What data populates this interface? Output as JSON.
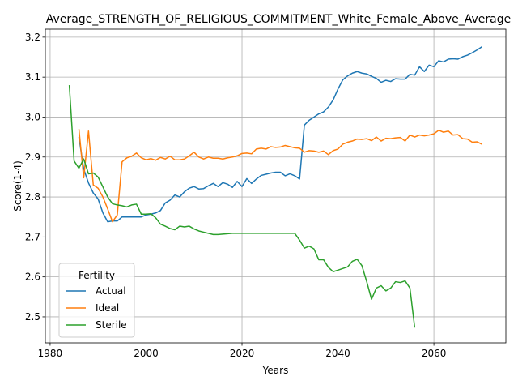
{
  "chart_data": {
    "type": "line",
    "title": "Average_STRENGTH_OF_RELIGIOUS_COMMITMENT_White_Female_Above_Average",
    "xlabel": "Years",
    "ylabel": "Score(1-4)",
    "xlim": [
      1979,
      2075
    ],
    "ylim": [
      2.435,
      3.22
    ],
    "xticks": [
      1980,
      2000,
      2020,
      2040,
      2060
    ],
    "yticks": [
      2.5,
      2.6,
      2.7,
      2.8,
      2.9,
      3.0,
      3.1,
      3.2
    ],
    "grid": true,
    "legend": {
      "title": "Fertility",
      "placement": "lower-left"
    },
    "series": [
      {
        "name": "Actual",
        "color": "#1f77b4",
        "x": [
          1986,
          1987,
          1988,
          1989,
          1990,
          1991,
          1992,
          1993,
          1994,
          1995,
          1996,
          1997,
          1998,
          1999,
          2000,
          2001,
          2002,
          2003,
          2004,
          2005,
          2006,
          2007,
          2008,
          2009,
          2010,
          2011,
          2012,
          2013,
          2014,
          2015,
          2016,
          2017,
          2018,
          2019,
          2020,
          2021,
          2022,
          2023,
          2024,
          2025,
          2026,
          2027,
          2028,
          2029,
          2030,
          2031,
          2032,
          2033,
          2034,
          2035,
          2036,
          2037,
          2038,
          2039,
          2040,
          2041,
          2042,
          2043,
          2044,
          2045,
          2046,
          2047,
          2048,
          2049,
          2050,
          2051,
          2052,
          2053,
          2054,
          2055,
          2056,
          2057,
          2058,
          2059,
          2060,
          2061,
          2062,
          2063,
          2064,
          2065,
          2066,
          2067,
          2068,
          2069,
          2070
        ],
        "y": [
          2.95,
          2.87,
          2.835,
          2.81,
          2.795,
          2.76,
          2.738,
          2.74,
          2.74,
          2.75,
          2.75,
          2.75,
          2.75,
          2.75,
          2.755,
          2.757,
          2.76,
          2.766,
          2.785,
          2.792,
          2.805,
          2.8,
          2.813,
          2.822,
          2.826,
          2.82,
          2.821,
          2.828,
          2.834,
          2.826,
          2.836,
          2.832,
          2.824,
          2.839,
          2.826,
          2.846,
          2.834,
          2.845,
          2.854,
          2.857,
          2.86,
          2.862,
          2.862,
          2.853,
          2.858,
          2.853,
          2.845,
          2.98,
          2.992,
          3.0,
          3.008,
          3.013,
          3.025,
          3.043,
          3.07,
          3.093,
          3.103,
          3.11,
          3.114,
          3.11,
          3.108,
          3.102,
          3.097,
          3.087,
          3.092,
          3.089,
          3.096,
          3.095,
          3.095,
          3.107,
          3.105,
          3.126,
          3.114,
          3.13,
          3.126,
          3.141,
          3.138,
          3.145,
          3.146,
          3.145,
          3.151,
          3.155,
          3.161,
          3.168,
          3.176
        ]
      },
      {
        "name": "Ideal",
        "color": "#ff7f0e",
        "x": [
          1986,
          1987,
          1988,
          1989,
          1990,
          1991,
          1992,
          1993,
          1994,
          1995,
          1996,
          1997,
          1998,
          1999,
          2000,
          2001,
          2002,
          2003,
          2004,
          2005,
          2006,
          2007,
          2008,
          2009,
          2010,
          2011,
          2012,
          2013,
          2014,
          2015,
          2016,
          2017,
          2018,
          2019,
          2020,
          2021,
          2022,
          2023,
          2024,
          2025,
          2026,
          2027,
          2028,
          2029,
          2030,
          2031,
          2032,
          2033,
          2034,
          2035,
          2036,
          2037,
          2038,
          2039,
          2040,
          2041,
          2042,
          2043,
          2044,
          2045,
          2046,
          2047,
          2048,
          2049,
          2050,
          2051,
          2052,
          2053,
          2054,
          2055,
          2056,
          2057,
          2058,
          2059,
          2060,
          2061,
          2062,
          2063,
          2064,
          2065,
          2066,
          2067,
          2068,
          2069,
          2070
        ],
        "y": [
          2.97,
          2.848,
          2.965,
          2.83,
          2.822,
          2.8,
          2.77,
          2.738,
          2.755,
          2.888,
          2.898,
          2.902,
          2.91,
          2.898,
          2.893,
          2.896,
          2.892,
          2.899,
          2.895,
          2.902,
          2.893,
          2.893,
          2.895,
          2.903,
          2.912,
          2.9,
          2.895,
          2.9,
          2.897,
          2.897,
          2.895,
          2.898,
          2.9,
          2.903,
          2.909,
          2.91,
          2.908,
          2.92,
          2.922,
          2.92,
          2.926,
          2.924,
          2.925,
          2.929,
          2.926,
          2.923,
          2.922,
          2.912,
          2.916,
          2.915,
          2.912,
          2.915,
          2.906,
          2.916,
          2.92,
          2.932,
          2.937,
          2.94,
          2.945,
          2.944,
          2.946,
          2.941,
          2.95,
          2.94,
          2.947,
          2.946,
          2.948,
          2.949,
          2.94,
          2.955,
          2.95,
          2.955,
          2.953,
          2.955,
          2.958,
          2.967,
          2.962,
          2.965,
          2.955,
          2.956,
          2.946,
          2.945,
          2.937,
          2.938,
          2.932
        ]
      },
      {
        "name": "Sterile",
        "color": "#2ca02c",
        "x": [
          1984,
          1985,
          1986,
          1987,
          1988,
          1989,
          1990,
          1991,
          1992,
          1993,
          1994,
          1995,
          1996,
          1997,
          1998,
          1999,
          2000,
          2001,
          2002,
          2003,
          2004,
          2005,
          2006,
          2007,
          2008,
          2009,
          2010,
          2011,
          2012,
          2013,
          2014,
          2015,
          2016,
          2017,
          2018,
          2019,
          2020,
          2021,
          2022,
          2023,
          2024,
          2025,
          2026,
          2027,
          2028,
          2029,
          2030,
          2031,
          2032,
          2033,
          2034,
          2035,
          2036,
          2037,
          2038,
          2039,
          2040,
          2041,
          2042,
          2043,
          2044,
          2045,
          2046,
          2047,
          2048,
          2049,
          2050,
          2051,
          2052,
          2053,
          2054,
          2055,
          2056
        ],
        "y": [
          3.08,
          2.89,
          2.872,
          2.895,
          2.858,
          2.86,
          2.85,
          2.825,
          2.8,
          2.783,
          2.78,
          2.778,
          2.775,
          2.78,
          2.782,
          2.757,
          2.757,
          2.758,
          2.748,
          2.732,
          2.727,
          2.721,
          2.718,
          2.727,
          2.725,
          2.727,
          2.72,
          2.715,
          2.712,
          2.709,
          2.706,
          2.706,
          2.707,
          2.708,
          2.709,
          2.709,
          2.709,
          2.709,
          2.709,
          2.709,
          2.709,
          2.709,
          2.709,
          2.709,
          2.709,
          2.709,
          2.709,
          2.709,
          2.692,
          2.672,
          2.677,
          2.67,
          2.643,
          2.643,
          2.624,
          2.613,
          2.617,
          2.621,
          2.625,
          2.639,
          2.644,
          2.628,
          2.588,
          2.544,
          2.572,
          2.578,
          2.565,
          2.572,
          2.588,
          2.586,
          2.59,
          2.572,
          2.473
        ]
      }
    ]
  }
}
